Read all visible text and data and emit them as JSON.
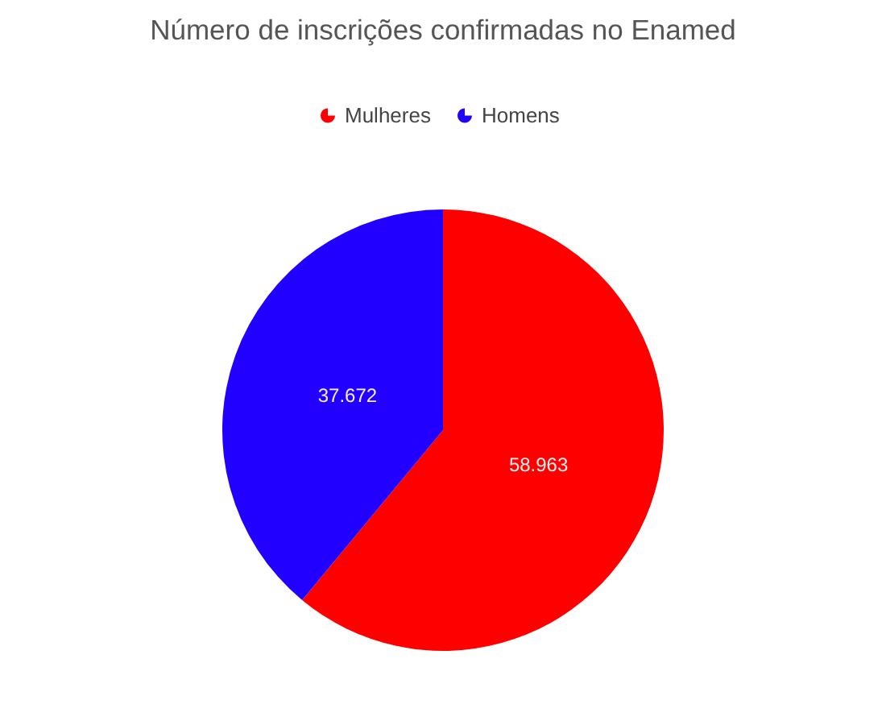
{
  "chart_data": {
    "type": "pie",
    "title": "Número de inscrições confirmadas no Enamed",
    "categories": [
      "Mulheres",
      "Homens"
    ],
    "values": [
      58963,
      37672
    ],
    "colors": [
      "#ff0000",
      "#2200ff"
    ],
    "value_labels": [
      "58.963",
      "37.672"
    ],
    "legend": "top"
  }
}
